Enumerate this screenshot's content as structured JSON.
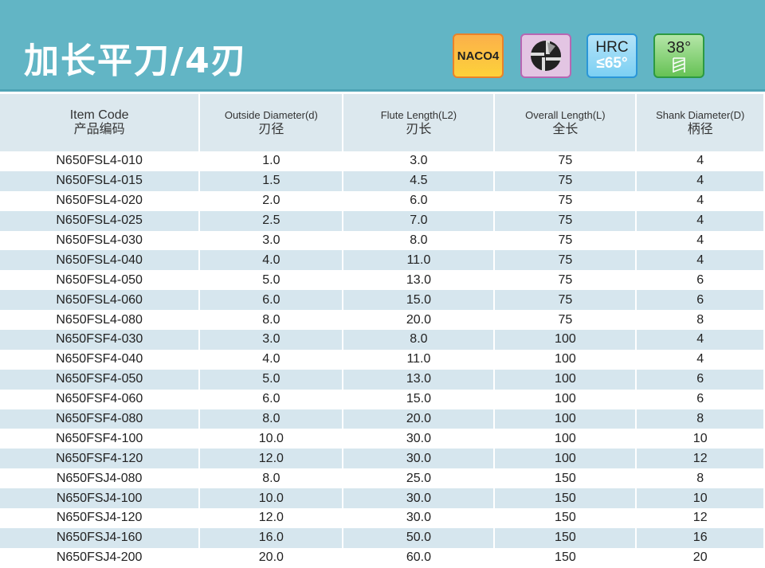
{
  "title": "加长平刀/4刃",
  "badges": {
    "coating": "NACO4",
    "hrc_label": "HRC",
    "hrc_value": "≤65°",
    "angle": "38°",
    "icons": [
      "coating-badge",
      "four-flute-icon",
      "hardness-badge",
      "helix-angle-badge"
    ]
  },
  "colors": {
    "header": "#62b5c5",
    "row_alt": "#d6e6ee",
    "table_header": "#dce8ee"
  },
  "columns": [
    {
      "en": "Item Code",
      "cn": "产品编码"
    },
    {
      "en": "Outside Diameter(d)",
      "cn": "刃径"
    },
    {
      "en": "Flute Length(L2)",
      "cn": "刃长"
    },
    {
      "en": "Overall Length(L)",
      "cn": "全长"
    },
    {
      "en": "Shank Diameter(D)",
      "cn": "柄径"
    }
  ],
  "rows": [
    [
      "N650FSL4-010",
      "1.0",
      "3.0",
      "75",
      "4"
    ],
    [
      "N650FSL4-015",
      "1.5",
      "4.5",
      "75",
      "4"
    ],
    [
      "N650FSL4-020",
      "2.0",
      "6.0",
      "75",
      "4"
    ],
    [
      "N650FSL4-025",
      "2.5",
      "7.0",
      "75",
      "4"
    ],
    [
      "N650FSL4-030",
      "3.0",
      "8.0",
      "75",
      "4"
    ],
    [
      "N650FSL4-040",
      "4.0",
      "11.0",
      "75",
      "4"
    ],
    [
      "N650FSL4-050",
      "5.0",
      "13.0",
      "75",
      "6"
    ],
    [
      "N650FSL4-060",
      "6.0",
      "15.0",
      "75",
      "6"
    ],
    [
      "N650FSL4-080",
      "8.0",
      "20.0",
      "75",
      "8"
    ],
    [
      "N650FSF4-030",
      "3.0",
      "8.0",
      "100",
      "4"
    ],
    [
      "N650FSF4-040",
      "4.0",
      "11.0",
      "100",
      "4"
    ],
    [
      "N650FSF4-050",
      "5.0",
      "13.0",
      "100",
      "6"
    ],
    [
      "N650FSF4-060",
      "6.0",
      "15.0",
      "100",
      "6"
    ],
    [
      "N650FSF4-080",
      "8.0",
      "20.0",
      "100",
      "8"
    ],
    [
      "N650FSF4-100",
      "10.0",
      "30.0",
      "100",
      "10"
    ],
    [
      "N650FSF4-120",
      "12.0",
      "30.0",
      "100",
      "12"
    ],
    [
      "N650FSJ4-080",
      "8.0",
      "25.0",
      "150",
      "8"
    ],
    [
      "N650FSJ4-100",
      "10.0",
      "30.0",
      "150",
      "10"
    ],
    [
      "N650FSJ4-120",
      "12.0",
      "30.0",
      "150",
      "12"
    ],
    [
      "N650FSJ4-160",
      "16.0",
      "50.0",
      "150",
      "16"
    ],
    [
      "N650FSJ4-200",
      "20.0",
      "60.0",
      "150",
      "20"
    ]
  ]
}
